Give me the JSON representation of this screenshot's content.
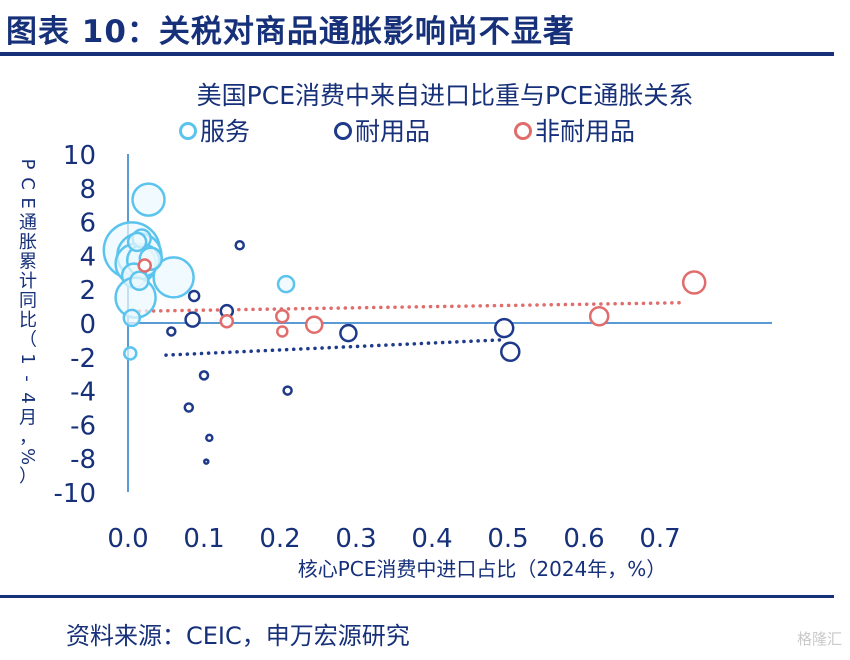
{
  "header": {
    "title": "图表 10：关税对商品通胀影响尚不显著"
  },
  "footer": {
    "source": "资料来源：CEIC，申万宏源研究",
    "watermark": "格隆汇"
  },
  "colors": {
    "navy": "#17307a",
    "axis": "#5b9bd5",
    "services": "#5bc4ee",
    "durables": "#1f3a8a",
    "nondurables": "#e06c6c"
  },
  "chart_data": {
    "type": "scatter",
    "title": "美国PCE消费中来自进口比重与PCE通胀关系",
    "xlabel": "核心PCE消费中进口占比（2024年，%）",
    "ylabel": "PCE通胀累计同比（1-4月，%）",
    "xlim": [
      0,
      0.75
    ],
    "ylim": [
      -10,
      10
    ],
    "xticks": [
      "0.0",
      "0.1",
      "0.2",
      "0.3",
      "0.4",
      "0.5",
      "0.6",
      "0.7"
    ],
    "yticks": [
      "10",
      "8",
      "6",
      "4",
      "2",
      "0",
      "-2",
      "-4",
      "-6",
      "-8",
      "-10"
    ],
    "legend": "top",
    "series": [
      {
        "name": "服务",
        "color": "#5bc4ee",
        "points": [
          {
            "x": 0.005,
            "y": 4.3,
            "size": 28
          },
          {
            "x": 0.015,
            "y": 4.0,
            "size": 22
          },
          {
            "x": 0.01,
            "y": 3.5,
            "size": 20
          },
          {
            "x": 0.02,
            "y": 3.7,
            "size": 16
          },
          {
            "x": 0.008,
            "y": 2.8,
            "size": 12
          },
          {
            "x": 0.01,
            "y": 1.5,
            "size": 20
          },
          {
            "x": 0.005,
            "y": 0.3,
            "size": 8
          },
          {
            "x": 0.003,
            "y": -1.8,
            "size": 6
          },
          {
            "x": 0.027,
            "y": 7.3,
            "size": 16
          },
          {
            "x": 0.06,
            "y": 2.7,
            "size": 20
          },
          {
            "x": 0.018,
            "y": 5.0,
            "size": 9
          },
          {
            "x": 0.03,
            "y": 3.8,
            "size": 11
          },
          {
            "x": 0.012,
            "y": 4.8,
            "size": 9
          },
          {
            "x": 0.208,
            "y": 2.3,
            "size": 8
          },
          {
            "x": 0.015,
            "y": 2.5,
            "size": 9
          }
        ]
      },
      {
        "name": "耐用品",
        "color": "#1f3a8a",
        "points": [
          {
            "x": 0.057,
            "y": -0.5,
            "size": 4
          },
          {
            "x": 0.085,
            "y": 0.2,
            "size": 7
          },
          {
            "x": 0.087,
            "y": 1.6,
            "size": 5
          },
          {
            "x": 0.13,
            "y": 0.7,
            "size": 6
          },
          {
            "x": 0.147,
            "y": 4.6,
            "size": 4
          },
          {
            "x": 0.1,
            "y": -3.1,
            "size": 4
          },
          {
            "x": 0.08,
            "y": -5.0,
            "size": 4
          },
          {
            "x": 0.107,
            "y": -6.8,
            "size": 3
          },
          {
            "x": 0.103,
            "y": -8.2,
            "size": 2
          },
          {
            "x": 0.21,
            "y": -4.0,
            "size": 4
          },
          {
            "x": 0.29,
            "y": -0.6,
            "size": 8
          },
          {
            "x": 0.495,
            "y": -0.3,
            "size": 9
          },
          {
            "x": 0.503,
            "y": -1.7,
            "size": 9
          }
        ]
      },
      {
        "name": "非耐用品",
        "color": "#e06c6c",
        "points": [
          {
            "x": 0.022,
            "y": 3.4,
            "size": 6
          },
          {
            "x": 0.13,
            "y": 0.1,
            "size": 6
          },
          {
            "x": 0.203,
            "y": 0.4,
            "size": 6
          },
          {
            "x": 0.203,
            "y": -0.5,
            "size": 5
          },
          {
            "x": 0.245,
            "y": -0.1,
            "size": 8
          },
          {
            "x": 0.62,
            "y": 0.4,
            "size": 9
          },
          {
            "x": 0.745,
            "y": 2.4,
            "size": 11
          }
        ]
      }
    ],
    "trendlines": [
      {
        "series": "耐用品",
        "from": [
          0.05,
          -1.9
        ],
        "to": [
          0.49,
          -1.0
        ]
      },
      {
        "series": "非耐用品",
        "from": [
          0.015,
          0.7
        ],
        "to": [
          0.73,
          1.2
        ]
      }
    ]
  }
}
